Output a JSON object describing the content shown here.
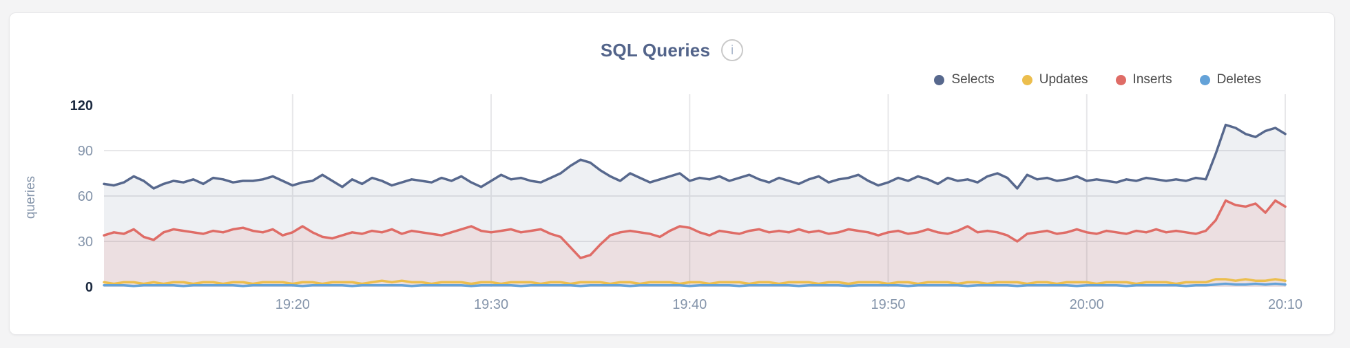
{
  "header": {
    "title": "SQL Queries",
    "info_icon_glyph": "i"
  },
  "chart_data": {
    "type": "area",
    "title": "SQL Queries",
    "ylabel": "queries",
    "xlabel": "",
    "x_start": "19:10:30",
    "x_interval_seconds": 30,
    "ylim": [
      0,
      120
    ],
    "y_max": 120,
    "grid": true,
    "legend_position": "top-right",
    "grid_color": "#e7e7e9",
    "tick_color": "#8494aa",
    "tick_dark_color": "#1c2a40",
    "y_ticks": [
      {
        "label": "120",
        "value": 120,
        "grid": false,
        "emphasis": true
      },
      {
        "label": "90",
        "value": 90,
        "grid": true,
        "emphasis": false
      },
      {
        "label": "60",
        "value": 60,
        "grid": true,
        "emphasis": false
      },
      {
        "label": "30",
        "value": 30,
        "grid": true,
        "emphasis": false
      },
      {
        "label": "0",
        "value": 0,
        "grid": false,
        "emphasis": true
      }
    ],
    "x_ticks": [
      {
        "label": "19:20",
        "index": 19
      },
      {
        "label": "19:30",
        "index": 39
      },
      {
        "label": "19:40",
        "index": 59
      },
      {
        "label": "19:50",
        "index": 79
      },
      {
        "label": "20:00",
        "index": 99
      },
      {
        "label": "20:10",
        "index": 119
      }
    ],
    "series": [
      {
        "name": "Selects",
        "color": "#57688d",
        "fill_opacity": 0.1,
        "values": [
          68,
          67,
          69,
          73,
          70,
          65,
          68,
          70,
          69,
          71,
          68,
          72,
          71,
          69,
          70,
          70,
          71,
          73,
          70,
          67,
          69,
          70,
          74,
          70,
          66,
          71,
          68,
          72,
          70,
          67,
          69,
          71,
          70,
          69,
          72,
          70,
          73,
          69,
          66,
          70,
          74,
          71,
          72,
          70,
          69,
          72,
          75,
          80,
          84,
          82,
          77,
          73,
          70,
          75,
          72,
          69,
          71,
          73,
          75,
          70,
          72,
          71,
          73,
          70,
          72,
          74,
          71,
          69,
          72,
          70,
          68,
          71,
          73,
          69,
          71,
          72,
          74,
          70,
          67,
          69,
          72,
          70,
          73,
          71,
          68,
          72,
          70,
          71,
          69,
          73,
          75,
          72,
          65,
          74,
          71,
          72,
          70,
          71,
          73,
          70,
          71,
          70,
          69,
          71,
          70,
          72,
          71,
          70,
          71,
          70,
          72,
          71,
          88,
          107,
          105,
          101,
          99,
          103,
          105,
          101
        ]
      },
      {
        "name": "Updates",
        "color": "#ecbe4d",
        "fill_opacity": 0,
        "values": [
          3,
          2,
          3,
          3,
          2,
          3,
          2,
          3,
          3,
          2,
          3,
          3,
          2,
          3,
          3,
          2,
          3,
          3,
          3,
          2,
          3,
          3,
          2,
          3,
          3,
          3,
          2,
          3,
          4,
          3,
          4,
          3,
          3,
          2,
          3,
          3,
          3,
          2,
          3,
          3,
          2,
          3,
          3,
          3,
          2,
          3,
          3,
          2,
          3,
          3,
          3,
          2,
          3,
          3,
          2,
          3,
          3,
          3,
          2,
          3,
          3,
          2,
          3,
          3,
          3,
          2,
          3,
          3,
          2,
          3,
          3,
          3,
          2,
          3,
          3,
          2,
          3,
          3,
          3,
          2,
          3,
          3,
          2,
          3,
          3,
          3,
          2,
          3,
          3,
          2,
          3,
          3,
          3,
          2,
          3,
          3,
          2,
          3,
          3,
          3,
          2,
          3,
          3,
          3,
          2,
          3,
          3,
          3,
          2,
          3,
          3,
          3,
          5,
          5,
          4,
          5,
          4,
          4,
          5,
          4
        ]
      },
      {
        "name": "Inserts",
        "color": "#df6c66",
        "fill_opacity": 0.12,
        "values": [
          34,
          36,
          35,
          38,
          33,
          31,
          36,
          38,
          37,
          36,
          35,
          37,
          36,
          38,
          39,
          37,
          36,
          38,
          34,
          36,
          40,
          36,
          33,
          32,
          34,
          36,
          35,
          37,
          36,
          38,
          35,
          37,
          36,
          35,
          34,
          36,
          38,
          40,
          37,
          36,
          37,
          38,
          36,
          37,
          38,
          35,
          33,
          26,
          19,
          21,
          28,
          34,
          36,
          37,
          36,
          35,
          33,
          37,
          40,
          39,
          36,
          34,
          37,
          36,
          35,
          37,
          38,
          36,
          37,
          36,
          38,
          36,
          37,
          35,
          36,
          38,
          37,
          36,
          34,
          36,
          37,
          35,
          36,
          38,
          36,
          35,
          37,
          40,
          36,
          37,
          36,
          34,
          30,
          35,
          36,
          37,
          35,
          36,
          38,
          36,
          35,
          37,
          36,
          35,
          37,
          36,
          38,
          36,
          37,
          36,
          35,
          37,
          44,
          57,
          54,
          53,
          55,
          49,
          57,
          53
        ]
      },
      {
        "name": "Deletes",
        "color": "#64a2d8",
        "fill_opacity": 0,
        "values": [
          1,
          1,
          1,
          0.5,
          1,
          1,
          1,
          1,
          0.5,
          1,
          1,
          1,
          1,
          1,
          0.5,
          1,
          1,
          1,
          1,
          1,
          0.5,
          1,
          1,
          1,
          1,
          0.5,
          1,
          1,
          1,
          1,
          1,
          0.5,
          1,
          1,
          1,
          1,
          1,
          0.5,
          1,
          1,
          1,
          1,
          0.5,
          1,
          1,
          1,
          1,
          1,
          0.5,
          1,
          1,
          1,
          1,
          0.5,
          1,
          1,
          1,
          1,
          1,
          0.5,
          1,
          1,
          1,
          1,
          0.5,
          1,
          1,
          1,
          1,
          1,
          0.5,
          1,
          1,
          1,
          1,
          0.5,
          1,
          1,
          1,
          1,
          1,
          0.5,
          1,
          1,
          1,
          1,
          1,
          0.5,
          1,
          1,
          1,
          1,
          0.5,
          1,
          1,
          1,
          1,
          1,
          0.5,
          1,
          1,
          1,
          1,
          0.5,
          1,
          1,
          1,
          1,
          1,
          0.5,
          1,
          1,
          1.5,
          2,
          1.5,
          1.5,
          2,
          1.5,
          2,
          1.5
        ]
      }
    ]
  }
}
